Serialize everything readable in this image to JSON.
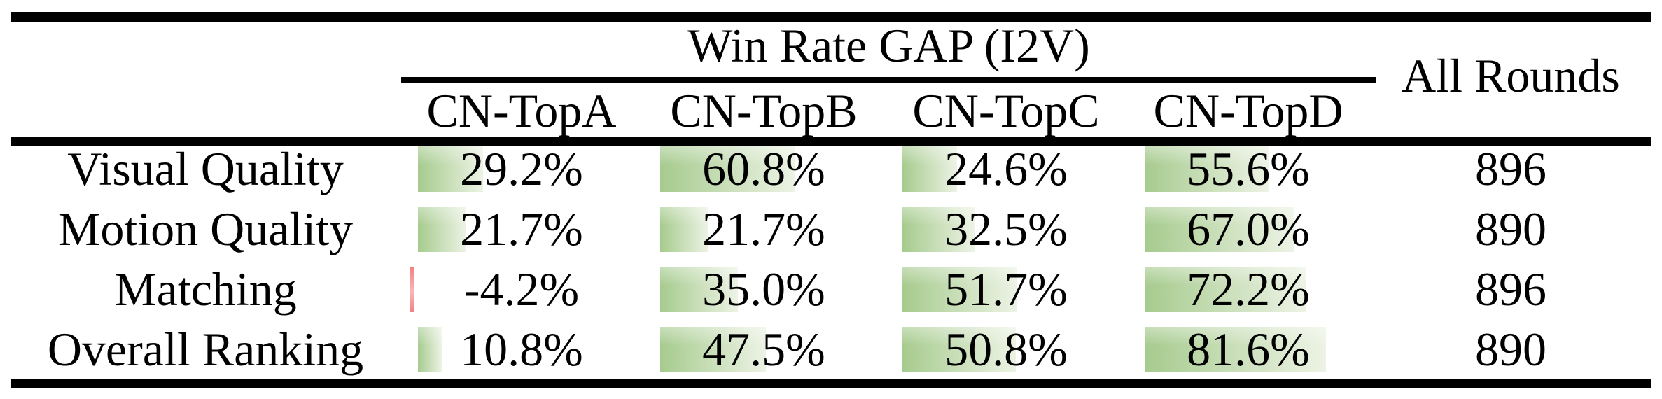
{
  "table": {
    "title": "Win Rate GAP (I2V)",
    "all_rounds_header": "All Rounds",
    "columns": [
      "CN-TopA",
      "CN-TopB",
      "CN-TopC",
      "CN-TopD"
    ],
    "rows": [
      {
        "label": "Visual Quality",
        "cells": [
          {
            "value": 29.2,
            "text": "29.2%"
          },
          {
            "value": 60.8,
            "text": "60.8%"
          },
          {
            "value": 24.6,
            "text": "24.6%"
          },
          {
            "value": 55.6,
            "text": "55.6%"
          }
        ],
        "all_rounds": "896"
      },
      {
        "label": "Motion Quality",
        "cells": [
          {
            "value": 21.7,
            "text": "21.7%"
          },
          {
            "value": 21.7,
            "text": "21.7%"
          },
          {
            "value": 32.5,
            "text": "32.5%"
          },
          {
            "value": 67.0,
            "text": "67.0%"
          }
        ],
        "all_rounds": "890"
      },
      {
        "label": "Matching",
        "cells": [
          {
            "value": -4.2,
            "text": "-4.2%"
          },
          {
            "value": 35.0,
            "text": "35.0%"
          },
          {
            "value": 51.7,
            "text": "51.7%"
          },
          {
            "value": 72.2,
            "text": "72.2%"
          }
        ],
        "all_rounds": "896"
      },
      {
        "label": "Overall Ranking",
        "cells": [
          {
            "value": 10.8,
            "text": "10.8%"
          },
          {
            "value": 47.5,
            "text": "47.5%"
          },
          {
            "value": 50.8,
            "text": "50.8%"
          },
          {
            "value": 81.6,
            "text": "81.6%"
          }
        ],
        "all_rounds": "890"
      }
    ],
    "colors": {
      "background": "#ffffff",
      "text": "#000000",
      "rule": "#000000",
      "bar_positive_start": "#a6cb8e",
      "bar_positive_end": "#edf3e5",
      "bar_negative": "#f28080"
    }
  }
}
